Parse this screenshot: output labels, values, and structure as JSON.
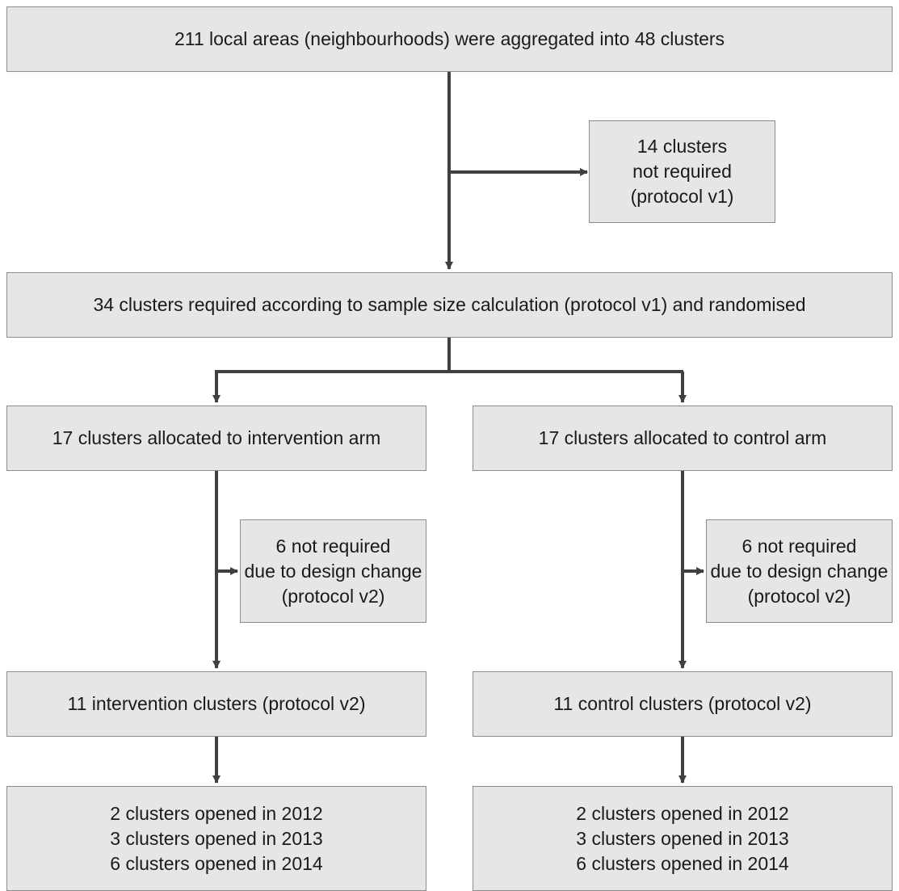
{
  "boxes": {
    "top": {
      "lines": [
        "211 local areas (neighbourhoods) were aggregated into 48 clusters"
      ]
    },
    "excluded_v1": {
      "lines": [
        "14 clusters",
        "not required",
        "(protocol v1)"
      ]
    },
    "randomised": {
      "lines": [
        "34 clusters required according to sample size calculation (protocol v1) and randomised"
      ]
    },
    "intervention_arm": {
      "lines": [
        "17 clusters allocated to intervention arm"
      ]
    },
    "control_arm": {
      "lines": [
        "17 clusters allocated to control arm"
      ]
    },
    "intervention_excluded": {
      "lines": [
        "6 not required",
        "due to design change",
        "(protocol v2)"
      ]
    },
    "control_excluded": {
      "lines": [
        "6 not required",
        "due to design change",
        "(protocol v2)"
      ]
    },
    "intervention_v2": {
      "lines": [
        "11 intervention clusters (protocol v2)"
      ]
    },
    "control_v2": {
      "lines": [
        "11 control clusters (protocol v2)"
      ]
    },
    "intervention_opened": {
      "lines": [
        "2 clusters opened in 2012",
        "3 clusters opened in 2013",
        "6 clusters opened in 2014"
      ]
    },
    "control_opened": {
      "lines": [
        "2 clusters opened in 2012",
        "3 clusters opened in 2013",
        "6 clusters opened in 2014"
      ]
    }
  },
  "colors": {
    "box_fill": "#e6e6e6",
    "box_border": "#8c8c8c",
    "connector": "#404040",
    "text": "#1a1a1a"
  }
}
